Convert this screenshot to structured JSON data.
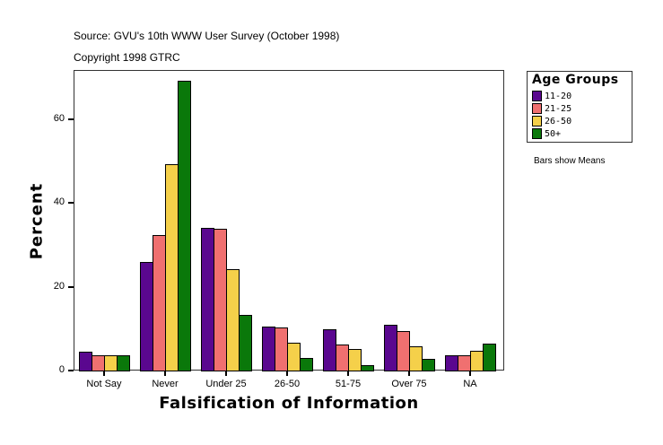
{
  "header": {
    "source": "Source: GVU's 10th WWW User Survey (October 1998)",
    "copyright": "Copyright 1998 GTRC"
  },
  "legend": {
    "title": "Age Groups",
    "items": [
      {
        "label": "11-20",
        "color": "#5a078f"
      },
      {
        "label": "21-25",
        "color": "#f07070"
      },
      {
        "label": "26-50",
        "color": "#f5d04a"
      },
      {
        "label": "50+",
        "color": "#0a780a"
      }
    ]
  },
  "note": "Bars show Means",
  "axes": {
    "xlabel": "Falsification of Information",
    "ylabel": "Percent",
    "yticks": [
      "0",
      "20",
      "40",
      "60"
    ]
  },
  "chart_data": {
    "type": "bar",
    "title": "",
    "subtitle": "Source: GVU's 10th WWW User Survey (October 1998) / Copyright 1998 GTRC",
    "xlabel": "Falsification of Information",
    "ylabel": "Percent",
    "ylim": [
      0,
      71.5
    ],
    "yticks": [
      0,
      20,
      40,
      60
    ],
    "grid": false,
    "legend_title": "Age Groups",
    "legend_position": "right",
    "annotations": [
      "Bars show Means"
    ],
    "categories": [
      "Not Say",
      "Never",
      "Under 25",
      "26-50",
      "51-75",
      "Over 75",
      "NA"
    ],
    "series": [
      {
        "name": "11-20",
        "color": "#5a078f",
        "values": [
          4.5,
          25.9,
          34.0,
          10.5,
          9.8,
          10.9,
          3.6
        ]
      },
      {
        "name": "21-25",
        "color": "#f07070",
        "values": [
          3.6,
          32.2,
          33.8,
          10.3,
          6.2,
          9.4,
          3.6
        ]
      },
      {
        "name": "26-50",
        "color": "#f5d04a",
        "values": [
          3.6,
          49.1,
          24.1,
          6.6,
          5.1,
          5.8,
          4.7
        ]
      },
      {
        "name": "50+",
        "color": "#0a780a",
        "values": [
          3.6,
          69.0,
          13.3,
          3.0,
          1.2,
          2.8,
          6.4
        ]
      }
    ]
  }
}
